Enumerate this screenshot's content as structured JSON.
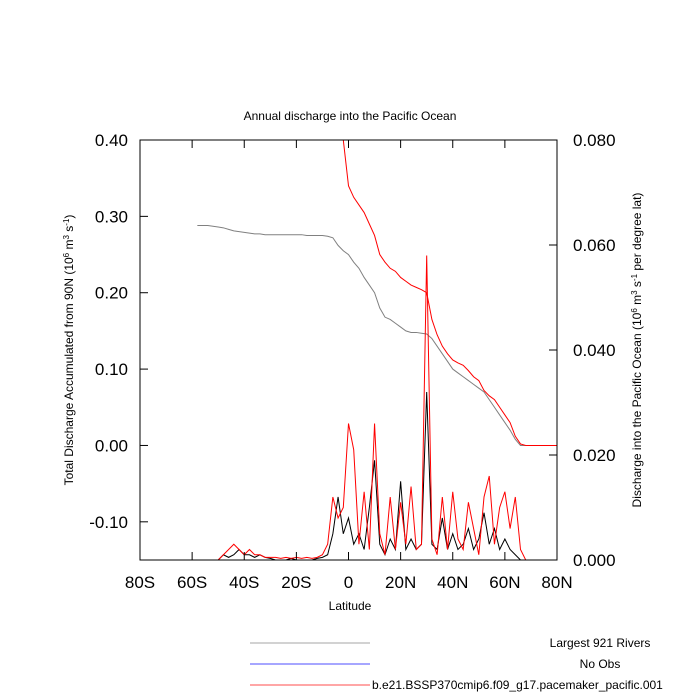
{
  "chart_data": {
    "type": "line",
    "title": "Annual discharge into the Pacific Ocean",
    "xlabel": "Latitude",
    "ylabel": [
      "Total Discharge Accumulated from 90N (10",
      "6",
      " m",
      "3",
      " s",
      "-1",
      ")"
    ],
    "y2label": [
      "Discharge into the Pacific Ocean (10",
      "6",
      " m",
      "3",
      " s",
      "-1",
      " per degree lat)"
    ],
    "xlim": [
      -80,
      80
    ],
    "xticks": [
      {
        "value": -80,
        "label": "80S"
      },
      {
        "value": -60,
        "label": "60S"
      },
      {
        "value": -40,
        "label": "40S"
      },
      {
        "value": -20,
        "label": "20S"
      },
      0,
      {
        "value": 20,
        "label": "20N"
      },
      {
        "value": 40,
        "label": "40N"
      },
      {
        "value": 60,
        "label": "60N"
      },
      {
        "value": 80,
        "label": "80N"
      }
    ],
    "ylim": [
      -0.15,
      0.4
    ],
    "yticks": [
      {
        "value": -0.1,
        "label": "-0.10"
      },
      {
        "value": 0,
        "label": "0.00"
      },
      {
        "value": 0.1,
        "label": "0.10"
      },
      {
        "value": 0.2,
        "label": "0.20"
      },
      {
        "value": 0.3,
        "label": "0.30"
      },
      {
        "value": 0.4,
        "label": "0.40"
      }
    ],
    "y2lim": [
      0,
      0.08
    ],
    "y2ticks": [
      {
        "value": 0,
        "label": "0.000"
      },
      {
        "value": 0.02,
        "label": "0.020"
      },
      {
        "value": 0.04,
        "label": "0.040"
      },
      {
        "value": 0.06,
        "label": "0.060"
      },
      {
        "value": 0.08,
        "label": "0.080"
      }
    ],
    "x": [
      -80,
      -78,
      -76,
      -74,
      -72,
      -70,
      -68,
      -66,
      -64,
      -62,
      -60,
      -58,
      -56,
      -54,
      -52,
      -50,
      -48,
      -46,
      -44,
      -42,
      -40,
      -38,
      -36,
      -34,
      -32,
      -30,
      -28,
      -26,
      -24,
      -22,
      -20,
      -18,
      -16,
      -14,
      -12,
      -10,
      -8,
      -6,
      -4,
      -2,
      0,
      2,
      4,
      6,
      8,
      10,
      12,
      14,
      16,
      18,
      20,
      22,
      24,
      26,
      28,
      30,
      32,
      34,
      36,
      38,
      40,
      42,
      44,
      46,
      48,
      50,
      52,
      54,
      56,
      58,
      60,
      62,
      64,
      66,
      68,
      70,
      72,
      74,
      76,
      78,
      80
    ],
    "series": [
      {
        "name": "Largest 921 Rivers",
        "color": "#808080",
        "axis": "y",
        "values": [
          null,
          null,
          null,
          null,
          null,
          null,
          null,
          null,
          null,
          null,
          null,
          0.288,
          0.288,
          0.288,
          0.287,
          0.286,
          0.285,
          0.283,
          0.281,
          0.28,
          0.279,
          0.278,
          0.277,
          0.277,
          0.276,
          0.276,
          0.276,
          0.276,
          0.276,
          0.276,
          0.276,
          0.276,
          0.275,
          0.275,
          0.275,
          0.275,
          0.274,
          0.272,
          0.262,
          0.255,
          0.25,
          0.24,
          0.232,
          0.22,
          0.21,
          0.2,
          0.18,
          0.168,
          0.165,
          0.16,
          0.155,
          0.15,
          0.148,
          0.148,
          0.147,
          0.146,
          0.14,
          0.13,
          0.12,
          0.11,
          0.1,
          0.095,
          0.09,
          0.085,
          0.08,
          0.075,
          0.07,
          0.06,
          0.05,
          0.04,
          0.03,
          0.02,
          0.008,
          0,
          0,
          0,
          0,
          0,
          0,
          0,
          0
        ]
      },
      {
        "name": "No Obs",
        "color": "#0000ff",
        "axis": "y",
        "values": [
          null,
          null,
          null,
          null,
          null,
          null,
          null,
          null,
          null,
          null,
          null,
          null,
          null,
          null,
          null,
          null,
          null,
          null,
          null,
          null,
          null,
          null,
          null,
          null,
          null,
          null,
          null,
          null,
          null,
          null,
          null,
          null,
          null,
          null,
          null,
          null,
          null,
          null,
          null,
          null,
          null,
          null,
          null,
          null,
          null,
          null,
          null,
          null,
          null,
          null,
          null,
          null,
          null,
          null,
          null,
          null,
          null,
          null,
          null,
          null,
          null,
          null,
          null,
          null,
          null,
          null,
          null,
          null,
          null,
          null,
          null,
          null,
          null,
          null,
          null,
          null,
          null,
          null,
          null,
          null,
          null
        ]
      },
      {
        "name": "b.e21.BSSP370cmip6.f09_g17.pacemaker_pacific.001",
        "color": "#ff0000",
        "axis": "y",
        "values": [
          null,
          null,
          null,
          null,
          null,
          null,
          null,
          null,
          null,
          null,
          null,
          null,
          null,
          null,
          null,
          null,
          null,
          null,
          null,
          null,
          null,
          null,
          null,
          null,
          null,
          null,
          null,
          null,
          null,
          null,
          null,
          null,
          null,
          null,
          null,
          null,
          null,
          null,
          null,
          0.4,
          0.34,
          0.325,
          0.315,
          0.305,
          0.29,
          0.275,
          0.25,
          0.24,
          0.232,
          0.228,
          0.22,
          0.215,
          0.21,
          0.207,
          0.204,
          0.2,
          0.165,
          0.145,
          0.13,
          0.12,
          0.112,
          0.108,
          0.105,
          0.098,
          0.09,
          0.085,
          0.072,
          0.065,
          0.06,
          0.05,
          0.04,
          0.03,
          0.012,
          0.002,
          0,
          0,
          0,
          0,
          0,
          0,
          0
        ]
      },
      {
        "color": "#000000",
        "axis": "y2",
        "values": [
          0,
          0,
          0,
          0,
          0,
          0,
          0,
          0,
          0,
          0,
          0,
          0,
          0,
          0,
          0,
          0,
          0.001,
          0.0005,
          0.001,
          0.002,
          0.001,
          0.001,
          0.0005,
          0.001,
          0.0005,
          0.0003,
          0,
          0,
          0,
          0.0003,
          0,
          0,
          0,
          0,
          0.0003,
          0.0005,
          0.001,
          0.005,
          0.012,
          0.005,
          0.008,
          0.003,
          0.005,
          0.002,
          0.01,
          0.019,
          0.003,
          0.001,
          0.004,
          0.002,
          0.015,
          0.002,
          0.004,
          0.002,
          0.003,
          0.032,
          0.003,
          0.002,
          0.008,
          0.002,
          0.005,
          0.002,
          0.003,
          0.006,
          0.002,
          0.004,
          0.009,
          0.003,
          0.006,
          0.002,
          0.004,
          0.002,
          0.001,
          0,
          0,
          0,
          0,
          0,
          0,
          0,
          0
        ]
      },
      {
        "color": "#ff0000",
        "axis": "y2",
        "values": [
          0,
          0,
          0,
          0,
          0,
          0,
          0,
          0,
          0,
          0,
          0,
          0,
          0,
          0,
          0,
          0,
          0.001,
          0.002,
          0.003,
          0.002,
          0.001,
          0.002,
          0.001,
          0.001,
          0.0005,
          0.0005,
          0.0005,
          0.0003,
          0.0005,
          0.0003,
          0.0005,
          0.0003,
          0.0005,
          0.0003,
          0.0005,
          0.001,
          0.003,
          0.012,
          0.008,
          0.01,
          0.026,
          0.021,
          0.003,
          0.013,
          0.002,
          0.026,
          0.005,
          0.001,
          0.012,
          0.002,
          0.011,
          0.003,
          0.014,
          0.002,
          0.003,
          0.058,
          0.004,
          0.001,
          0.012,
          0.002,
          0.013,
          0.004,
          0.002,
          0.011,
          0.006,
          0.001,
          0.012,
          0.016,
          0.003,
          0.01,
          0.013,
          0.006,
          0.012,
          0.002,
          0,
          0,
          0,
          0,
          0,
          0,
          0
        ]
      }
    ]
  }
}
